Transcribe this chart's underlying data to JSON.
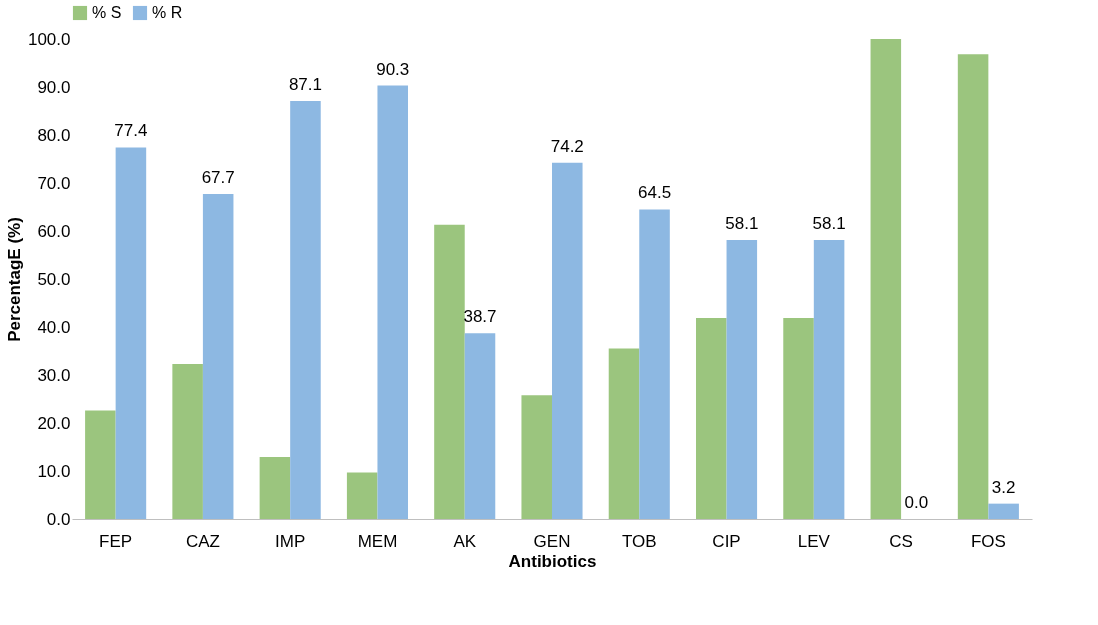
{
  "chart_data": {
    "type": "bar",
    "xlabel": "Antibiotics",
    "ylabel": "PercentagE (%)",
    "categories": [
      "FEP",
      "CAZ",
      "IMP",
      "MEM",
      "AK",
      "GEN",
      "TOB",
      "CIP",
      "LEV",
      "CS",
      "FOS"
    ],
    "series": [
      {
        "name": "% S",
        "color": "#9bc57e",
        "values": [
          22.6,
          32.3,
          12.9,
          9.7,
          61.3,
          25.8,
          35.5,
          41.9,
          41.9,
          100.0,
          96.8
        ]
      },
      {
        "name": "% R",
        "color": "#8db8e2",
        "values": [
          77.4,
          67.7,
          87.1,
          90.3,
          38.7,
          74.2,
          64.5,
          58.1,
          58.1,
          0.0,
          3.2
        ],
        "value_labels": [
          "77.4",
          "67.7",
          "87.1",
          "90.3",
          "38.7",
          "74.2",
          "64.5",
          "58.1",
          "58.1",
          "0.0",
          "3.2"
        ]
      }
    ],
    "ylim": [
      0,
      100
    ],
    "yticks": [
      {
        "value": 0,
        "label": "0.0"
      },
      {
        "value": 10,
        "label": "10.0"
      },
      {
        "value": 20,
        "label": "20.0"
      },
      {
        "value": 30,
        "label": "30.0"
      },
      {
        "value": 40,
        "label": "40.0"
      },
      {
        "value": 50,
        "label": "50.0"
      },
      {
        "value": 60,
        "label": "60.0"
      },
      {
        "value": 70,
        "label": "70.0"
      },
      {
        "value": 80,
        "label": "80.0"
      },
      {
        "value": 90,
        "label": "90.0"
      },
      {
        "value": 100,
        "label": "100.0"
      }
    ],
    "grid": false,
    "legend": "top"
  }
}
